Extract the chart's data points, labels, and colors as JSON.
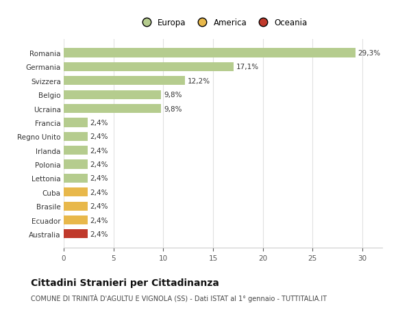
{
  "categories": [
    "Australia",
    "Ecuador",
    "Brasile",
    "Cuba",
    "Lettonia",
    "Polonia",
    "Irlanda",
    "Regno Unito",
    "Francia",
    "Ucraina",
    "Belgio",
    "Svizzera",
    "Germania",
    "Romania"
  ],
  "values": [
    2.4,
    2.4,
    2.4,
    2.4,
    2.4,
    2.4,
    2.4,
    2.4,
    2.4,
    9.8,
    9.8,
    12.2,
    17.1,
    29.3
  ],
  "labels": [
    "2,4%",
    "2,4%",
    "2,4%",
    "2,4%",
    "2,4%",
    "2,4%",
    "2,4%",
    "2,4%",
    "2,4%",
    "9,8%",
    "9,8%",
    "12,2%",
    "17,1%",
    "29,3%"
  ],
  "colors": [
    "#c0392b",
    "#e8b84b",
    "#e8b84b",
    "#e8b84b",
    "#b5cc8e",
    "#b5cc8e",
    "#b5cc8e",
    "#b5cc8e",
    "#b5cc8e",
    "#b5cc8e",
    "#b5cc8e",
    "#b5cc8e",
    "#b5cc8e",
    "#b5cc8e"
  ],
  "legend": [
    {
      "label": "Europa",
      "color": "#b5cc8e"
    },
    {
      "label": "America",
      "color": "#e8b84b"
    },
    {
      "label": "Oceania",
      "color": "#c0392b"
    }
  ],
  "xlim": [
    0,
    32
  ],
  "xticks": [
    0,
    5,
    10,
    15,
    20,
    25,
    30
  ],
  "title": "Cittadini Stranieri per Cittadinanza",
  "subtitle": "COMUNE DI TRINITÀ D'AGULTU E VIGNOLA (SS) - Dati ISTAT al 1° gennaio - TUTTITALIA.IT",
  "bg_color": "#ffffff",
  "bar_height": 0.65,
  "label_fontsize": 7.5,
  "tick_fontsize": 7.5,
  "title_fontsize": 10,
  "subtitle_fontsize": 7
}
